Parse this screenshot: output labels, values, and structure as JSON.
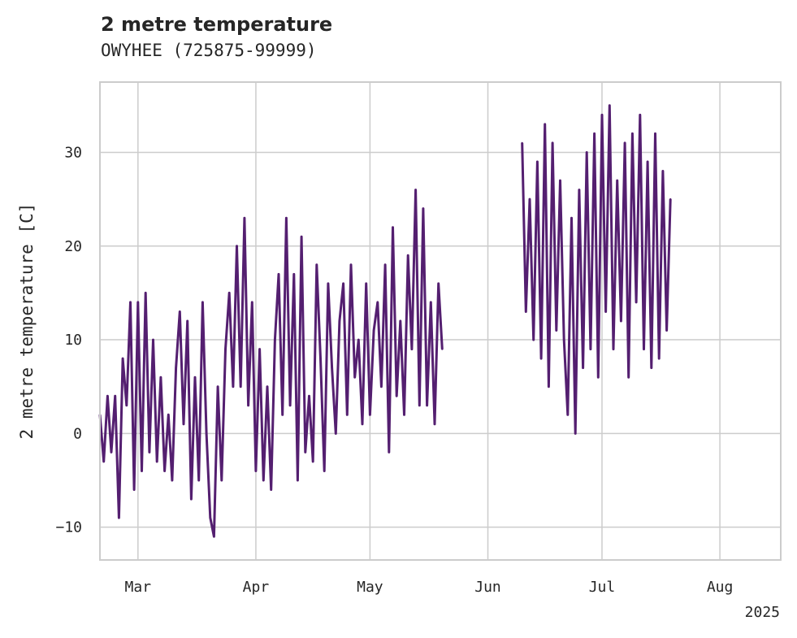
{
  "chart_data": {
    "type": "line",
    "title": "2 metre temperature",
    "subtitle": "OWYHEE (725875-99999)",
    "xlabel": "",
    "ylabel": "2 metre temperature [C]",
    "ylim": [
      -13.5,
      37.5
    ],
    "yticks": [
      -10,
      0,
      10,
      20,
      30
    ],
    "ytick_labels": [
      "−10",
      "0",
      "10",
      "20",
      "30"
    ],
    "xlim": [
      "2025-02-19",
      "2025-08-17"
    ],
    "xticks": [
      "2025-03-01",
      "2025-04-01",
      "2025-05-01",
      "2025-06-01",
      "2025-07-01",
      "2025-08-01"
    ],
    "xtick_labels": [
      "Mar",
      "Apr",
      "May",
      "Jun",
      "Jul",
      "Aug"
    ],
    "x_offset_label": "2025",
    "grid": true,
    "series": [
      {
        "color": "#541f70",
        "points": [
          [
            "2025-02-19",
            2
          ],
          [
            "2025-02-20",
            -3
          ],
          [
            "2025-02-21",
            4
          ],
          [
            "2025-02-22",
            -2
          ],
          [
            "2025-02-23",
            4
          ],
          [
            "2025-02-24",
            -9
          ],
          [
            "2025-02-25",
            8
          ],
          [
            "2025-02-26",
            3
          ],
          [
            "2025-02-27",
            14
          ],
          [
            "2025-02-28",
            -6
          ],
          [
            "2025-03-01",
            14
          ],
          [
            "2025-03-02",
            -4
          ],
          [
            "2025-03-03",
            15
          ],
          [
            "2025-03-04",
            -2
          ],
          [
            "2025-03-05",
            10
          ],
          [
            "2025-03-06",
            -3
          ],
          [
            "2025-03-07",
            6
          ],
          [
            "2025-03-08",
            -4
          ],
          [
            "2025-03-09",
            2
          ],
          [
            "2025-03-10",
            -5
          ],
          [
            "2025-03-11",
            7
          ],
          [
            "2025-03-12",
            13
          ],
          [
            "2025-03-13",
            1
          ],
          [
            "2025-03-14",
            12
          ],
          [
            "2025-03-15",
            -7
          ],
          [
            "2025-03-16",
            6
          ],
          [
            "2025-03-17",
            -5
          ],
          [
            "2025-03-18",
            14
          ],
          [
            "2025-03-19",
            0
          ],
          [
            "2025-03-20",
            -9
          ],
          [
            "2025-03-21",
            -11
          ],
          [
            "2025-03-22",
            5
          ],
          [
            "2025-03-23",
            -5
          ],
          [
            "2025-03-24",
            9
          ],
          [
            "2025-03-25",
            15
          ],
          [
            "2025-03-26",
            5
          ],
          [
            "2025-03-27",
            20
          ],
          [
            "2025-03-28",
            5
          ],
          [
            "2025-03-29",
            23
          ],
          [
            "2025-03-30",
            3
          ],
          [
            "2025-03-31",
            14
          ],
          [
            "2025-04-01",
            -4
          ],
          [
            "2025-04-02",
            9
          ],
          [
            "2025-04-03",
            -5
          ],
          [
            "2025-04-04",
            5
          ],
          [
            "2025-04-05",
            -6
          ],
          [
            "2025-04-06",
            10
          ],
          [
            "2025-04-07",
            17
          ],
          [
            "2025-04-08",
            2
          ],
          [
            "2025-04-09",
            23
          ],
          [
            "2025-04-10",
            3
          ],
          [
            "2025-04-11",
            17
          ],
          [
            "2025-04-12",
            -5
          ],
          [
            "2025-04-13",
            21
          ],
          [
            "2025-04-14",
            -2
          ],
          [
            "2025-04-15",
            4
          ],
          [
            "2025-04-16",
            -3
          ],
          [
            "2025-04-17",
            18
          ],
          [
            "2025-04-18",
            8
          ],
          [
            "2025-04-19",
            -4
          ],
          [
            "2025-04-20",
            16
          ],
          [
            "2025-04-21",
            7
          ],
          [
            "2025-04-22",
            0
          ],
          [
            "2025-04-23",
            12
          ],
          [
            "2025-04-24",
            16
          ],
          [
            "2025-04-25",
            2
          ],
          [
            "2025-04-26",
            18
          ],
          [
            "2025-04-27",
            6
          ],
          [
            "2025-04-28",
            10
          ],
          [
            "2025-04-29",
            1
          ],
          [
            "2025-04-30",
            16
          ],
          [
            "2025-05-01",
            2
          ],
          [
            "2025-05-02",
            11
          ],
          [
            "2025-05-03",
            14
          ],
          [
            "2025-05-04",
            5
          ],
          [
            "2025-05-05",
            18
          ],
          [
            "2025-05-06",
            -2
          ],
          [
            "2025-05-07",
            22
          ],
          [
            "2025-05-08",
            4
          ],
          [
            "2025-05-09",
            12
          ],
          [
            "2025-05-10",
            2
          ],
          [
            "2025-05-11",
            19
          ],
          [
            "2025-05-12",
            9
          ],
          [
            "2025-05-13",
            26
          ],
          [
            "2025-05-14",
            3
          ],
          [
            "2025-05-15",
            24
          ],
          [
            "2025-05-16",
            3
          ],
          [
            "2025-05-17",
            14
          ],
          [
            "2025-05-18",
            1
          ],
          [
            "2025-05-19",
            16
          ],
          [
            "2025-05-20",
            9
          ],
          [
            "2025-06-10",
            31
          ],
          [
            "2025-06-11",
            13
          ],
          [
            "2025-06-12",
            25
          ],
          [
            "2025-06-13",
            10
          ],
          [
            "2025-06-14",
            29
          ],
          [
            "2025-06-15",
            8
          ],
          [
            "2025-06-16",
            33
          ],
          [
            "2025-06-17",
            5
          ],
          [
            "2025-06-18",
            31
          ],
          [
            "2025-06-19",
            11
          ],
          [
            "2025-06-20",
            27
          ],
          [
            "2025-06-21",
            10
          ],
          [
            "2025-06-22",
            2
          ],
          [
            "2025-06-23",
            23
          ],
          [
            "2025-06-24",
            0
          ],
          [
            "2025-06-25",
            26
          ],
          [
            "2025-06-26",
            7
          ],
          [
            "2025-06-27",
            30
          ],
          [
            "2025-06-28",
            9
          ],
          [
            "2025-06-29",
            32
          ],
          [
            "2025-06-30",
            6
          ],
          [
            "2025-07-01",
            34
          ],
          [
            "2025-07-02",
            13
          ],
          [
            "2025-07-03",
            35
          ],
          [
            "2025-07-04",
            9
          ],
          [
            "2025-07-05",
            27
          ],
          [
            "2025-07-06",
            12
          ],
          [
            "2025-07-07",
            31
          ],
          [
            "2025-07-08",
            6
          ],
          [
            "2025-07-09",
            32
          ],
          [
            "2025-07-10",
            14
          ],
          [
            "2025-07-11",
            34
          ],
          [
            "2025-07-12",
            9
          ],
          [
            "2025-07-13",
            29
          ],
          [
            "2025-07-14",
            7
          ],
          [
            "2025-07-15",
            32
          ],
          [
            "2025-07-16",
            8
          ],
          [
            "2025-07-17",
            28
          ],
          [
            "2025-07-18",
            11
          ],
          [
            "2025-07-19",
            25
          ]
        ]
      }
    ]
  }
}
